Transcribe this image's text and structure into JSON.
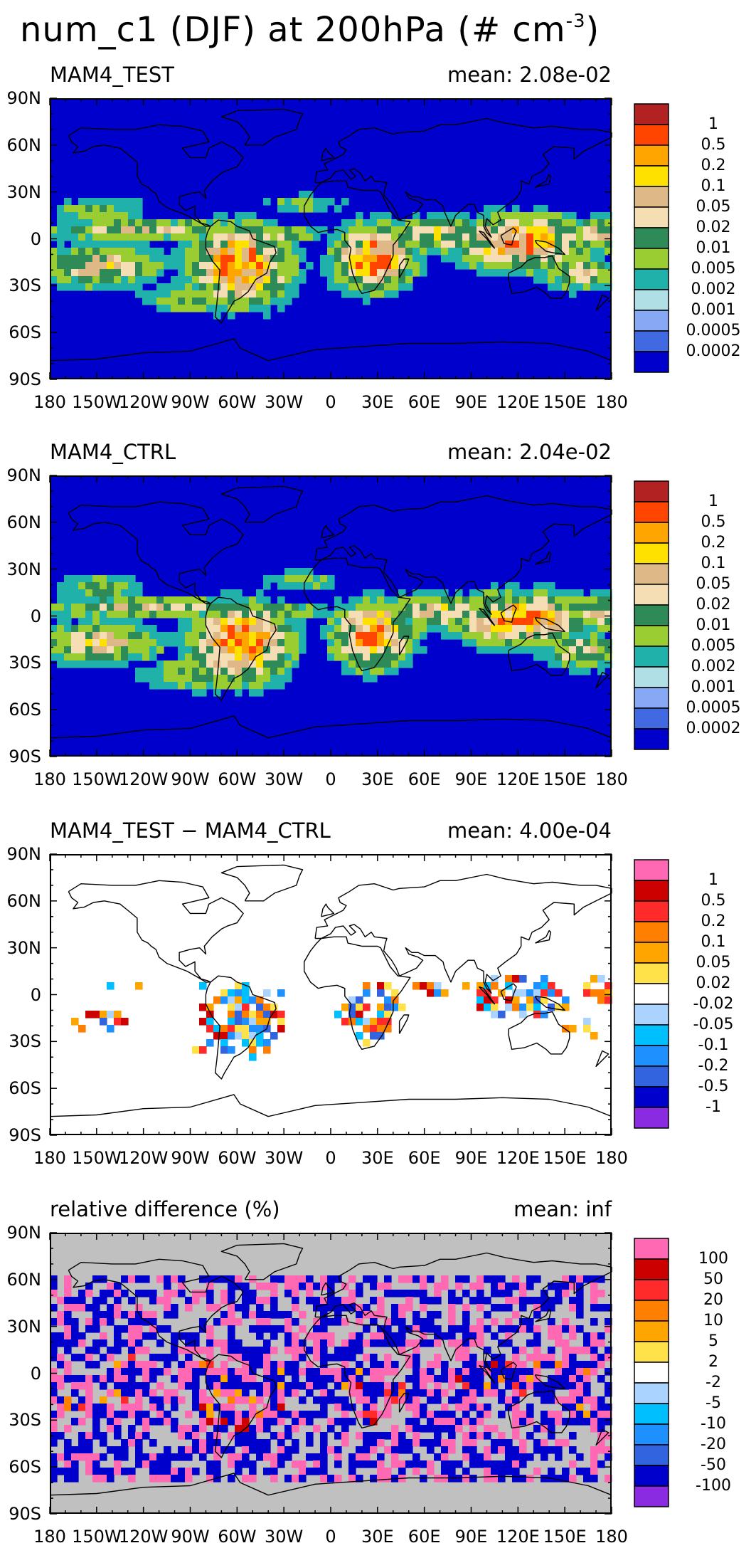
{
  "title": {
    "main": "num_c1 (DJF) at 200hPa (# cm",
    "sup": "-3",
    "close": ")"
  },
  "axes": {
    "lat_ticks": [
      "90N",
      "60N",
      "30N",
      "0",
      "30S",
      "60S",
      "90S"
    ],
    "lon_ticks": [
      "180",
      "150W",
      "120W",
      "90W",
      "60W",
      "30W",
      "0",
      "30E",
      "60E",
      "90E",
      "120E",
      "150E",
      "180"
    ]
  },
  "colorbars": {
    "absolute": {
      "labels": [
        "1",
        "0.5",
        "0.2",
        "0.1",
        "0.05",
        "0.02",
        "0.01",
        "0.005",
        "0.002",
        "0.001",
        "0.0005",
        "0.0002"
      ],
      "colors": [
        "#b22222",
        "#ff4500",
        "#ffa500",
        "#ffe100",
        "#deb887",
        "#f5deb3",
        "#2e8b57",
        "#9acd32",
        "#20b2aa",
        "#b0e0e6",
        "#87a9f5",
        "#4169e1",
        "#0000cd"
      ]
    },
    "difference": {
      "labels": [
        "1",
        "0.5",
        "0.2",
        "0.1",
        "0.05",
        "0.02",
        "-0.02",
        "-0.05",
        "-0.1",
        "-0.2",
        "-0.5",
        "-1"
      ],
      "colors": [
        "#ff69b4",
        "#cd0000",
        "#ff2a2a",
        "#ff7f00",
        "#ffa500",
        "#ffe14a",
        "#ffffff",
        "#aad4ff",
        "#00bfff",
        "#1e90ff",
        "#3264e0",
        "#0000cd",
        "#8a2be2"
      ]
    },
    "relative": {
      "labels": [
        "100",
        "50",
        "20",
        "10",
        "5",
        "2",
        "-2",
        "-5",
        "-10",
        "-20",
        "-50",
        "-100"
      ],
      "colors": [
        "#ff69b4",
        "#cd0000",
        "#ff2a2a",
        "#ff7f00",
        "#ffa500",
        "#ffe14a",
        "#ffffff",
        "#aad4ff",
        "#00bfff",
        "#1e90ff",
        "#3264e0",
        "#0000cd",
        "#8a2be2"
      ]
    }
  },
  "panels": [
    {
      "title": "MAM4_TEST",
      "mean": "mean: 2.08e-02",
      "kind": "absolute",
      "background": "#0000cd"
    },
    {
      "title": "MAM4_CTRL",
      "mean": "mean: 2.04e-02",
      "kind": "absolute",
      "background": "#0000cd"
    },
    {
      "title": "MAM4_TEST − MAM4_CTRL",
      "mean": "mean: 4.00e-04",
      "kind": "difference",
      "background": "#ffffff"
    },
    {
      "title": "relative difference (%)",
      "mean": "mean:    inf",
      "kind": "relative",
      "background": "#c0c0c0"
    }
  ],
  "chart_data": {
    "type": "heatmap",
    "variable": "num_c1 (DJF) at 200hPa",
    "units": "# cm^-3",
    "x_range": [
      -180,
      180
    ],
    "y_range": [
      -90,
      90
    ],
    "maps": [
      {
        "name": "MAM4_TEST",
        "mean": 0.0208
      },
      {
        "name": "MAM4_CTRL",
        "mean": 0.0204
      },
      {
        "name": "MAM4_TEST - MAM4_CTRL",
        "mean": 0.0004
      },
      {
        "name": "relative difference (%)",
        "mean": "inf"
      }
    ]
  }
}
